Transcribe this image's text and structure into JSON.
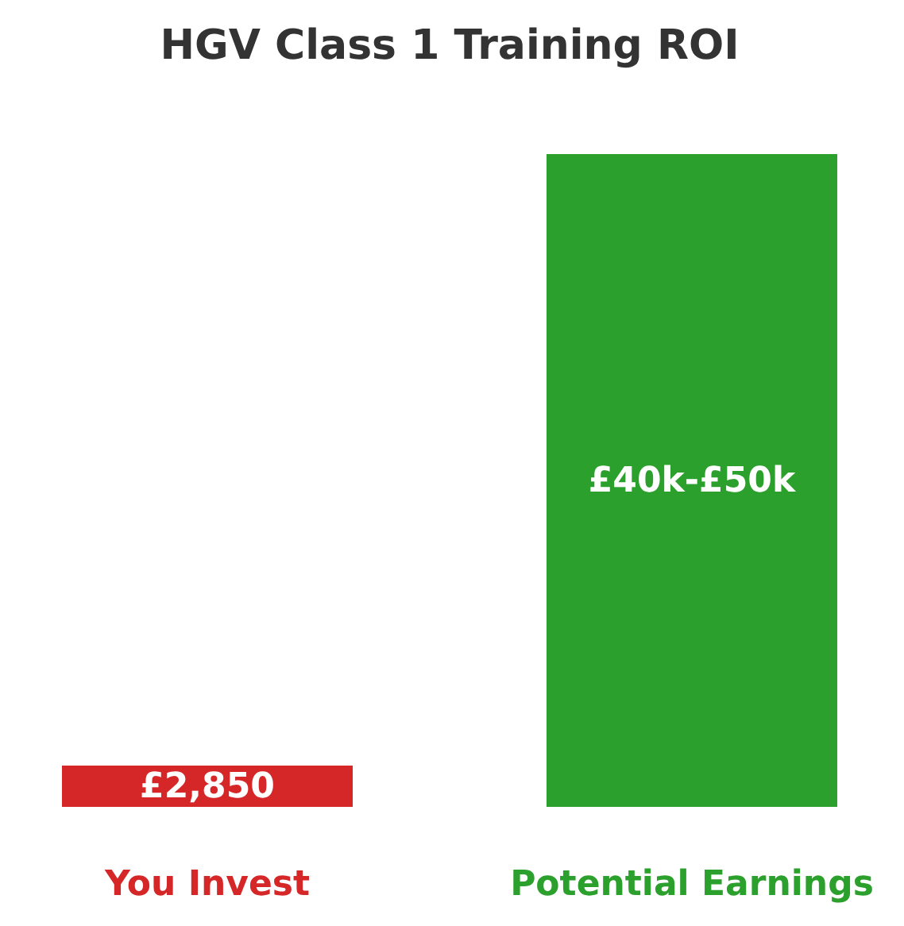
{
  "chart_data": {
    "type": "bar",
    "title": "HGV Class 1 Training ROI",
    "categories": [
      "You Invest",
      "Potential Earnings"
    ],
    "values": [
      2850,
      45000
    ],
    "colors": [
      "#d62728",
      "#2ca02c"
    ],
    "value_labels": [
      "£2,850",
      null
    ],
    "annotations": [
      "£40k-£50k"
    ]
  }
}
